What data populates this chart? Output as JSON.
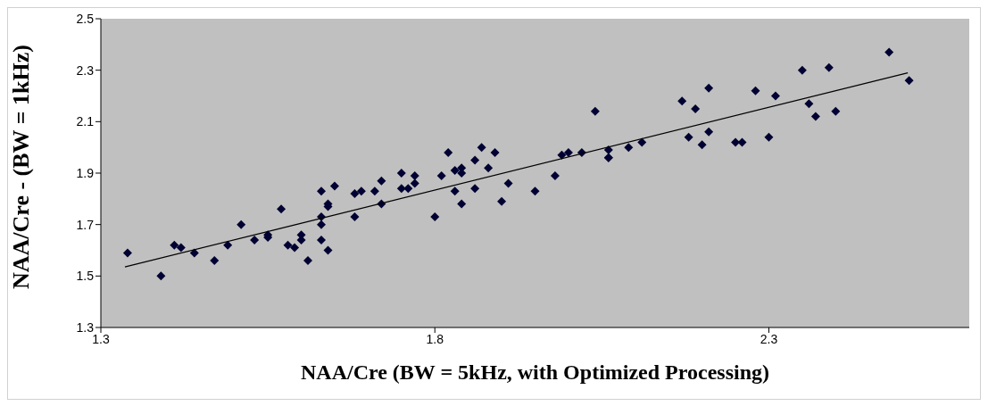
{
  "chart_data": {
    "type": "scatter",
    "xlabel": "NAA/Cre  (BW = 5kHz, with Optimized Processing)",
    "ylabel": "NAA/Cre - (BW = 1kHz)",
    "xlim": [
      1.3,
      2.6
    ],
    "xticks": [
      1.3,
      1.8,
      2.3
    ],
    "ylim": [
      1.3,
      2.5
    ],
    "yticks": [
      1.3,
      1.5,
      1.7,
      1.9,
      2.1,
      2.3,
      2.5
    ],
    "grid": false,
    "marker": "diamond",
    "series": [
      {
        "color": "#000033",
        "x": [
          1.34,
          1.39,
          1.41,
          1.42,
          1.44,
          1.47,
          1.49,
          1.51,
          1.53,
          1.55,
          1.55,
          1.57,
          1.58,
          1.59,
          1.6,
          1.6,
          1.61,
          1.63,
          1.63,
          1.63,
          1.64,
          1.64,
          1.63,
          1.64,
          1.65,
          1.68,
          1.68,
          1.69,
          1.71,
          1.72,
          1.72,
          1.75,
          1.76,
          1.75,
          1.77,
          1.77,
          1.8,
          1.81,
          1.82,
          1.83,
          1.83,
          1.84,
          1.84,
          1.84,
          1.86,
          1.86,
          1.87,
          1.88,
          1.89,
          1.9,
          1.91,
          1.95,
          1.98,
          1.99,
          2.0,
          2.02,
          2.04,
          2.06,
          2.06,
          2.06,
          2.09,
          2.11,
          2.17,
          2.18,
          2.19,
          2.2,
          2.21,
          2.21,
          2.25,
          2.26,
          2.28,
          2.3,
          2.31,
          2.35,
          2.36,
          2.37,
          2.39,
          2.4,
          2.48,
          2.51
        ],
        "values": [
          1.59,
          1.5,
          1.62,
          1.61,
          1.59,
          1.56,
          1.62,
          1.7,
          1.64,
          1.65,
          1.66,
          1.76,
          1.62,
          1.61,
          1.66,
          1.64,
          1.56,
          1.83,
          1.73,
          1.7,
          1.78,
          1.77,
          1.64,
          1.6,
          1.85,
          1.73,
          1.82,
          1.83,
          1.83,
          1.87,
          1.78,
          1.84,
          1.84,
          1.9,
          1.89,
          1.86,
          1.73,
          1.89,
          1.98,
          1.83,
          1.91,
          1.9,
          1.92,
          1.78,
          1.84,
          1.95,
          2.0,
          1.92,
          1.98,
          1.79,
          1.86,
          1.83,
          1.89,
          1.97,
          1.98,
          1.98,
          2.14,
          1.99,
          1.96,
          1.96,
          2.0,
          2.02,
          2.18,
          2.04,
          2.15,
          2.01,
          2.23,
          2.06,
          2.02,
          2.02,
          2.22,
          2.04,
          2.2,
          2.3,
          2.17,
          2.12,
          2.31,
          2.14,
          2.37,
          2.26
        ]
      },
      {
        "type": "line",
        "color": "#000000",
        "marker": "none",
        "line_style": "solid",
        "x": [
          1.336,
          2.508
        ],
        "values": [
          1.535,
          2.29
        ]
      }
    ]
  }
}
